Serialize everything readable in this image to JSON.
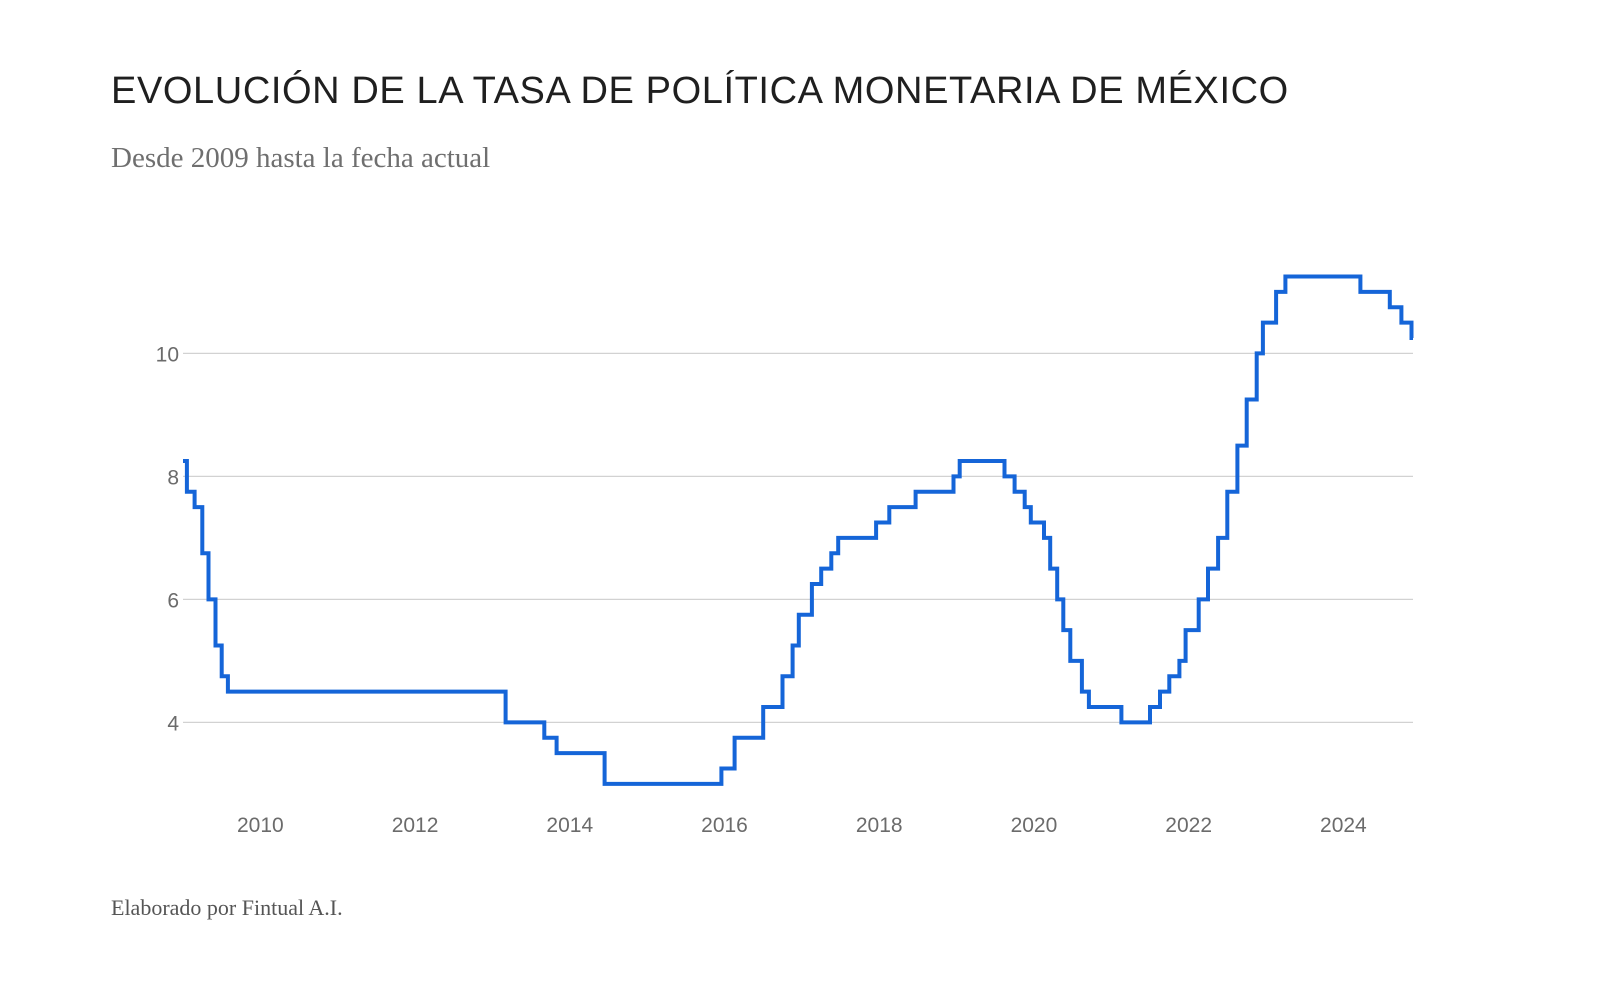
{
  "header": {
    "title": "EVOLUCIÓN DE LA TASA DE POLÍTICA MONETARIA DE MÉXICO",
    "subtitle": "Desde 2009 hasta la fecha actual"
  },
  "footer": {
    "credit": "Elaborado por Fintual A.I."
  },
  "colors": {
    "line": "#1565d8",
    "grid": "#d2d2d2",
    "tick_text": "#6b6b6b"
  },
  "chart_data": {
    "type": "line",
    "step": true,
    "title": "EVOLUCIÓN DE LA TASA DE POLÍTICA MONETARIA DE MÉXICO",
    "subtitle": "Desde 2009 hasta la fecha actual",
    "xlabel": "",
    "ylabel": "",
    "xlim": [
      2009.0,
      2024.9
    ],
    "ylim": [
      2.9,
      11.6
    ],
    "grid": true,
    "legend": "none",
    "x_ticks": [
      2010,
      2012,
      2014,
      2016,
      2018,
      2020,
      2022,
      2024
    ],
    "x_tick_labels": [
      "2010",
      "2012",
      "2014",
      "2016",
      "2018",
      "2020",
      "2022",
      "2024"
    ],
    "y_ticks": [
      4,
      6,
      8,
      10
    ],
    "y_tick_labels": [
      "4",
      "6",
      "8",
      "10"
    ],
    "series": [
      {
        "values": [
          [
            2009.0,
            8.25
          ],
          [
            2009.05,
            7.75
          ],
          [
            2009.15,
            7.5
          ],
          [
            2009.25,
            6.75
          ],
          [
            2009.33,
            6.0
          ],
          [
            2009.42,
            5.25
          ],
          [
            2009.5,
            4.75
          ],
          [
            2009.58,
            4.5
          ],
          [
            2013.17,
            4.0
          ],
          [
            2013.67,
            3.75
          ],
          [
            2013.83,
            3.5
          ],
          [
            2014.45,
            3.0
          ],
          [
            2015.96,
            3.25
          ],
          [
            2016.13,
            3.75
          ],
          [
            2016.5,
            4.25
          ],
          [
            2016.75,
            4.75
          ],
          [
            2016.88,
            5.25
          ],
          [
            2016.96,
            5.75
          ],
          [
            2017.13,
            6.25
          ],
          [
            2017.25,
            6.5
          ],
          [
            2017.38,
            6.75
          ],
          [
            2017.47,
            7.0
          ],
          [
            2017.96,
            7.25
          ],
          [
            2018.13,
            7.5
          ],
          [
            2018.47,
            7.75
          ],
          [
            2018.96,
            8.0
          ],
          [
            2019.04,
            8.25
          ],
          [
            2019.62,
            8.0
          ],
          [
            2019.75,
            7.75
          ],
          [
            2019.88,
            7.5
          ],
          [
            2019.96,
            7.25
          ],
          [
            2020.13,
            7.0
          ],
          [
            2020.21,
            6.5
          ],
          [
            2020.3,
            6.0
          ],
          [
            2020.38,
            5.5
          ],
          [
            2020.47,
            5.0
          ],
          [
            2020.62,
            4.5
          ],
          [
            2020.71,
            4.25
          ],
          [
            2021.13,
            4.0
          ],
          [
            2021.5,
            4.25
          ],
          [
            2021.63,
            4.5
          ],
          [
            2021.75,
            4.75
          ],
          [
            2021.88,
            5.0
          ],
          [
            2021.96,
            5.5
          ],
          [
            2022.13,
            6.0
          ],
          [
            2022.25,
            6.5
          ],
          [
            2022.38,
            7.0
          ],
          [
            2022.5,
            7.75
          ],
          [
            2022.63,
            8.5
          ],
          [
            2022.75,
            9.25
          ],
          [
            2022.88,
            10.0
          ],
          [
            2022.96,
            10.5
          ],
          [
            2023.13,
            11.0
          ],
          [
            2023.25,
            11.25
          ],
          [
            2024.22,
            11.0
          ],
          [
            2024.6,
            10.75
          ],
          [
            2024.75,
            10.5
          ],
          [
            2024.88,
            10.25
          ],
          [
            2024.9,
            10.25
          ]
        ]
      }
    ]
  }
}
